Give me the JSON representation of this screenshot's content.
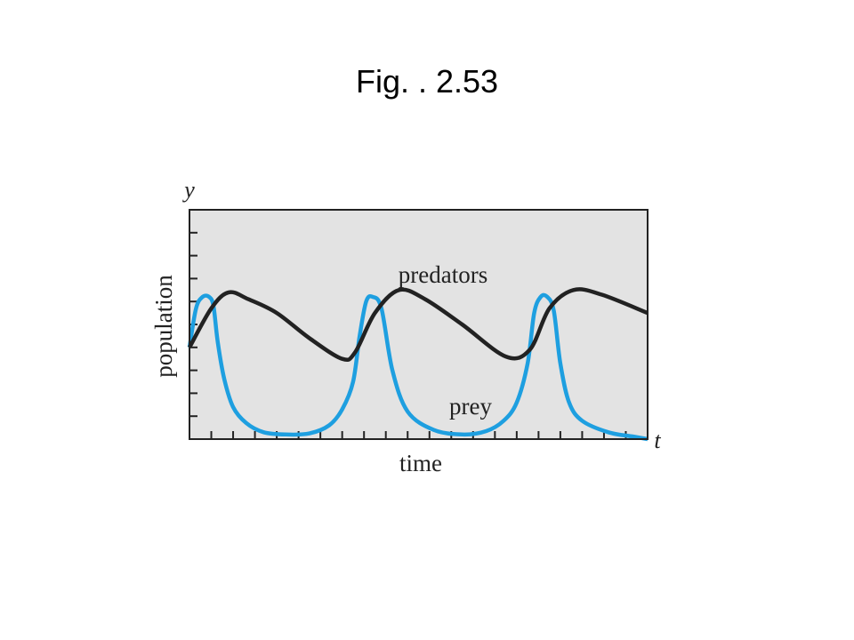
{
  "slide": {
    "title": "Fig. .  2.53"
  },
  "colors": {
    "plot_background": "#e3e3e3",
    "predators": "#222222",
    "prey": "#1e9fe0",
    "axes": "#222222"
  },
  "chart_data": {
    "type": "line",
    "xlabel": "time",
    "ylabel": "population",
    "x_axis_letter": "t",
    "y_axis_letter": "y",
    "x_tick_count": 21,
    "y_tick_count": 10,
    "xlim": [
      0,
      21
    ],
    "ylim": [
      0,
      10
    ],
    "grid": false,
    "series": [
      {
        "name": "predators",
        "x": [
          0,
          1,
          1.8,
          2.7,
          4,
          5.5,
          7,
          7.6,
          8.5,
          9.6,
          10.8,
          12.5,
          14.5,
          15.6,
          16.5,
          17.6,
          18.9,
          21
        ],
        "y": [
          4.0,
          5.7,
          6.4,
          6.1,
          5.5,
          4.4,
          3.5,
          3.8,
          5.5,
          6.5,
          6.1,
          5.0,
          3.6,
          3.9,
          5.7,
          6.5,
          6.3,
          5.5
        ]
      },
      {
        "name": "prey",
        "x": [
          0,
          0.3,
          0.6,
          0.9,
          1.1,
          1.3,
          1.6,
          2.0,
          2.6,
          3.4,
          4.4,
          5.5,
          6.4,
          7.0,
          7.5,
          7.8,
          8.1,
          8.4,
          8.8,
          9.3,
          10.0,
          11.2,
          12.5,
          13.6,
          14.4,
          15.0,
          15.5,
          15.8,
          16.1,
          16.4,
          16.7,
          17.0,
          17.4,
          18.0,
          19.2,
          20.4,
          21
        ],
        "y": [
          4.0,
          5.7,
          6.2,
          6.2,
          5.8,
          4.2,
          2.6,
          1.4,
          0.7,
          0.3,
          0.2,
          0.25,
          0.6,
          1.3,
          2.5,
          4.5,
          6.0,
          6.2,
          5.7,
          3.0,
          1.2,
          0.4,
          0.2,
          0.35,
          0.8,
          1.6,
          3.3,
          5.5,
          6.2,
          6.2,
          5.6,
          3.3,
          1.6,
          0.8,
          0.3,
          0.1,
          0.0
        ]
      }
    ]
  }
}
